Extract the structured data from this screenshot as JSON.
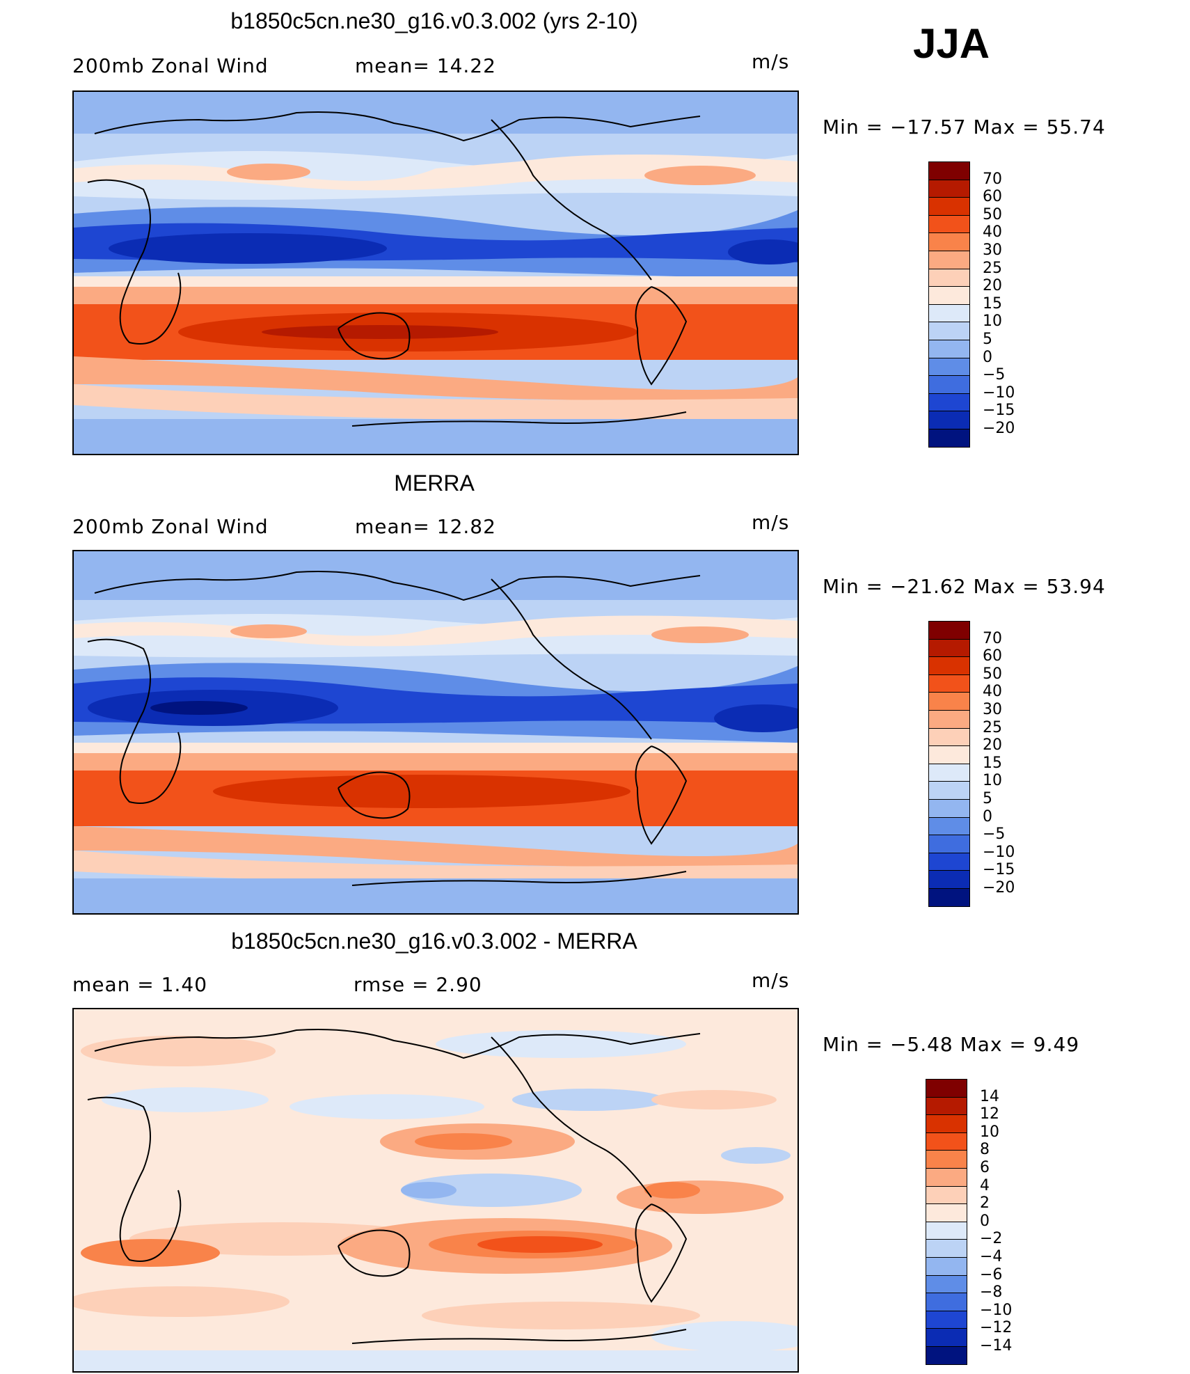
{
  "season": "JJA",
  "panels": [
    {
      "title": "b1850c5cn.ne30_g16.v0.3.002 (yrs 2-10)",
      "left_label": "200mb Zonal Wind",
      "mid_label": "mean=   14.22",
      "units": "m/s",
      "minmax": "Min = −17.57  Max =   55.74"
    },
    {
      "title": "MERRA",
      "left_label": "200mb Zonal Wind",
      "mid_label": "mean=   12.82",
      "units": "m/s",
      "minmax": "Min = −21.62  Max =   53.94"
    },
    {
      "title": "b1850c5cn.ne30_g16.v0.3.002 - MERRA",
      "left_label": "mean =    1.40",
      "mid_label": "rmse =    2.90",
      "units": "m/s",
      "minmax": "Min =  −5.48  Max =    9.49"
    }
  ],
  "colorbars": {
    "wind": {
      "labels": [
        "70",
        "60",
        "50",
        "40",
        "30",
        "25",
        "20",
        "15",
        "10",
        "5",
        "0",
        "−5",
        "−10",
        "−15",
        "−20"
      ],
      "colors": [
        "#7f0000",
        "#b51a00",
        "#d93200",
        "#f2521a",
        "#f9834a",
        "#fbaa82",
        "#fdd0b8",
        "#fde9dc",
        "#dde9f9",
        "#bcd3f5",
        "#93b6f0",
        "#5f8de7",
        "#3f6ddf",
        "#1e46d2",
        "#0b2cb4",
        "#00137f"
      ]
    },
    "diff": {
      "labels": [
        "14",
        "12",
        "10",
        "8",
        "6",
        "4",
        "2",
        "0",
        "−2",
        "−4",
        "−6",
        "−8",
        "−10",
        "−12",
        "−14"
      ],
      "colors": [
        "#7f0000",
        "#b51a00",
        "#d93200",
        "#f2521a",
        "#f9834a",
        "#fbaa82",
        "#fdd0b8",
        "#fde9dc",
        "#dde9f9",
        "#bcd3f5",
        "#93b6f0",
        "#5f8de7",
        "#3f6ddf",
        "#1e46d2",
        "#0b2cb4",
        "#00137f"
      ]
    }
  },
  "icons": {
    "continents": "coastline-outline"
  }
}
